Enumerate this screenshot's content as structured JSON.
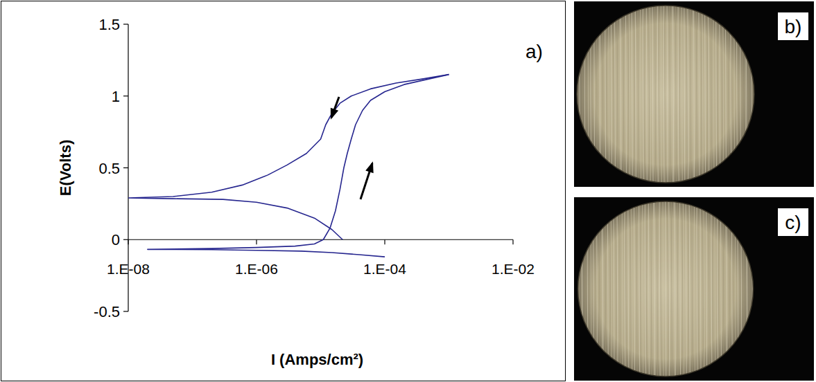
{
  "chart_data": {
    "type": "line",
    "x_label": "I (Amps/cm²)",
    "y_label": "E(Volts)",
    "annotations": [
      "a)"
    ],
    "log": "x",
    "grid": false,
    "xlim": [
      1e-08,
      0.01
    ],
    "xticks": [
      {
        "value": 1e-08,
        "label": "1.E-08"
      },
      {
        "value": 1e-06,
        "label": "1.E-06"
      },
      {
        "value": 0.0001,
        "label": "1.E-04"
      },
      {
        "value": 0.01,
        "label": "1.E-02"
      }
    ],
    "ylim": [
      -0.5,
      1.5
    ],
    "yticks": [
      -0.5,
      0,
      0.5,
      1,
      1.5
    ],
    "series": [
      {
        "color": "#26268f",
        "line_style": "solid",
        "x": [
          0.0001,
          4e-05,
          1.5e-05,
          5e-06,
          1e-06,
          2e-07,
          2e-08,
          2e-07,
          1e-06,
          4e-06,
          8e-06,
          1.1e-05,
          1.4e-05,
          1.7e-05,
          2e-05,
          2.3e-05,
          2.6e-05,
          3e-05,
          3.5e-05,
          4.5e-05,
          6e-05,
          0.0001,
          0.0002,
          0.0005,
          0.001
        ],
        "values": [
          -0.12,
          -0.105,
          -0.09,
          -0.08,
          -0.075,
          -0.07,
          -0.068,
          -0.062,
          -0.055,
          -0.045,
          -0.03,
          0.0,
          0.08,
          0.2,
          0.35,
          0.5,
          0.6,
          0.7,
          0.8,
          0.9,
          0.97,
          1.03,
          1.08,
          1.12,
          1.15
        ]
      },
      {
        "color": "#26268f",
        "line_style": "solid",
        "x": [
          0.001,
          0.0004,
          0.00015,
          6e-05,
          3e-05,
          2e-05,
          1.5e-05,
          1.2e-05,
          1e-05,
          6e-06,
          3e-06,
          1.5e-06,
          6e-07,
          2e-07,
          5e-08,
          1e-08,
          5e-08,
          3e-07,
          1e-06,
          3e-06,
          8e-06,
          1.5e-05,
          2.2e-05
        ],
        "values": [
          1.15,
          1.12,
          1.09,
          1.05,
          1.0,
          0.95,
          0.88,
          0.8,
          0.7,
          0.6,
          0.52,
          0.45,
          0.38,
          0.33,
          0.3,
          0.29,
          0.285,
          0.28,
          0.26,
          0.22,
          0.15,
          0.07,
          0.0
        ]
      }
    ]
  },
  "photos": [
    {
      "label": "b)"
    },
    {
      "label": "c)"
    }
  ]
}
